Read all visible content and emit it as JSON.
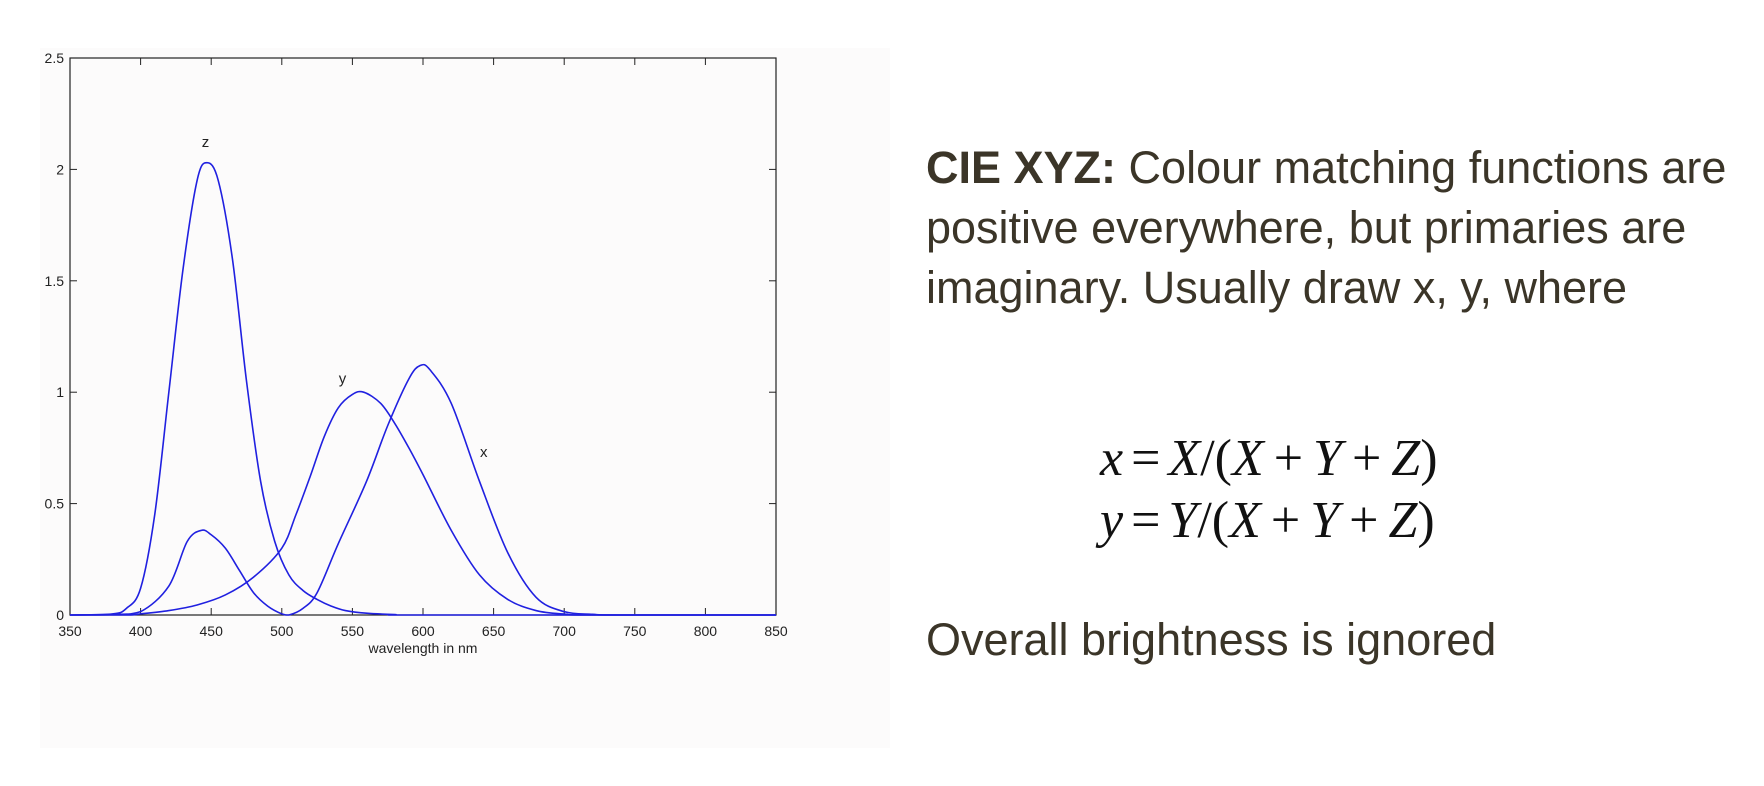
{
  "chart_data": {
    "type": "line",
    "title": "",
    "xlabel": "wavelength in nm",
    "ylabel": "",
    "xlim": [
      350,
      850
    ],
    "ylim": [
      0,
      2.5
    ],
    "x_ticks": [
      "350",
      "400",
      "450",
      "500",
      "550",
      "600",
      "650",
      "700",
      "750",
      "800",
      "850"
    ],
    "y_ticks": [
      "0",
      "0.5",
      "1",
      "1.5",
      "2",
      "2.5"
    ],
    "grid": false,
    "line_color": "#2020e0",
    "series": [
      {
        "name": "z",
        "label_at": [
          446,
          2.1
        ],
        "points": [
          [
            350,
            0
          ],
          [
            380,
            0.005
          ],
          [
            390,
            0.03
          ],
          [
            400,
            0.12
          ],
          [
            410,
            0.45
          ],
          [
            420,
            1.0
          ],
          [
            430,
            1.55
          ],
          [
            440,
            1.95
          ],
          [
            447,
            2.03
          ],
          [
            455,
            1.95
          ],
          [
            465,
            1.6
          ],
          [
            475,
            1.05
          ],
          [
            485,
            0.6
          ],
          [
            495,
            0.33
          ],
          [
            505,
            0.18
          ],
          [
            515,
            0.11
          ],
          [
            525,
            0.07
          ],
          [
            535,
            0.04
          ],
          [
            545,
            0.02
          ],
          [
            560,
            0.008
          ],
          [
            580,
            0.002
          ],
          [
            600,
            0
          ],
          [
            850,
            0
          ]
        ]
      },
      {
        "name": "y",
        "label_at": [
          543,
          1.04
        ],
        "points": [
          [
            350,
            0
          ],
          [
            390,
            0
          ],
          [
            400,
            0.005
          ],
          [
            420,
            0.02
          ],
          [
            440,
            0.045
          ],
          [
            460,
            0.09
          ],
          [
            480,
            0.17
          ],
          [
            500,
            0.3
          ],
          [
            510,
            0.45
          ],
          [
            520,
            0.62
          ],
          [
            530,
            0.8
          ],
          [
            540,
            0.93
          ],
          [
            550,
            0.99
          ],
          [
            558,
            1.0
          ],
          [
            570,
            0.95
          ],
          [
            580,
            0.86
          ],
          [
            590,
            0.75
          ],
          [
            600,
            0.63
          ],
          [
            620,
            0.38
          ],
          [
            640,
            0.18
          ],
          [
            660,
            0.07
          ],
          [
            680,
            0.02
          ],
          [
            700,
            0.004
          ],
          [
            720,
            0
          ],
          [
            850,
            0
          ]
        ]
      },
      {
        "name": "x",
        "label_at": [
          643,
          0.71
        ],
        "points": [
          [
            350,
            0
          ],
          [
            380,
            0.002
          ],
          [
            400,
            0.015
          ],
          [
            420,
            0.13
          ],
          [
            433,
            0.33
          ],
          [
            443,
            0.38
          ],
          [
            450,
            0.36
          ],
          [
            460,
            0.3
          ],
          [
            470,
            0.2
          ],
          [
            480,
            0.1
          ],
          [
            490,
            0.04
          ],
          [
            500,
            0.005
          ],
          [
            505,
            0
          ],
          [
            515,
            0.03
          ],
          [
            525,
            0.1
          ],
          [
            540,
            0.32
          ],
          [
            560,
            0.6
          ],
          [
            575,
            0.85
          ],
          [
            590,
            1.06
          ],
          [
            598,
            1.12
          ],
          [
            605,
            1.1
          ],
          [
            620,
            0.95
          ],
          [
            640,
            0.6
          ],
          [
            660,
            0.28
          ],
          [
            680,
            0.08
          ],
          [
            700,
            0.015
          ],
          [
            720,
            0.003
          ],
          [
            740,
            0
          ],
          [
            850,
            0
          ]
        ]
      }
    ]
  },
  "text": {
    "heading": "CIE XYZ:",
    "description": "Colour matching functions are positive everywhere, but primaries are imaginary. Usually draw x, y, where",
    "formula1": {
      "lhs": "x",
      "eq": "=",
      "num": "X",
      "open": "/(",
      "a": "X",
      "plus1": "+",
      "b": "Y",
      "plus2": "+",
      "c": "Z",
      "close": ")"
    },
    "formula2": {
      "lhs": "y",
      "eq": "=",
      "num": "Y",
      "open": "/(",
      "a": "X",
      "plus1": "+",
      "b": "Y",
      "plus2": "+",
      "c": "Z",
      "close": ")"
    },
    "note": "Overall brightness is ignored"
  }
}
